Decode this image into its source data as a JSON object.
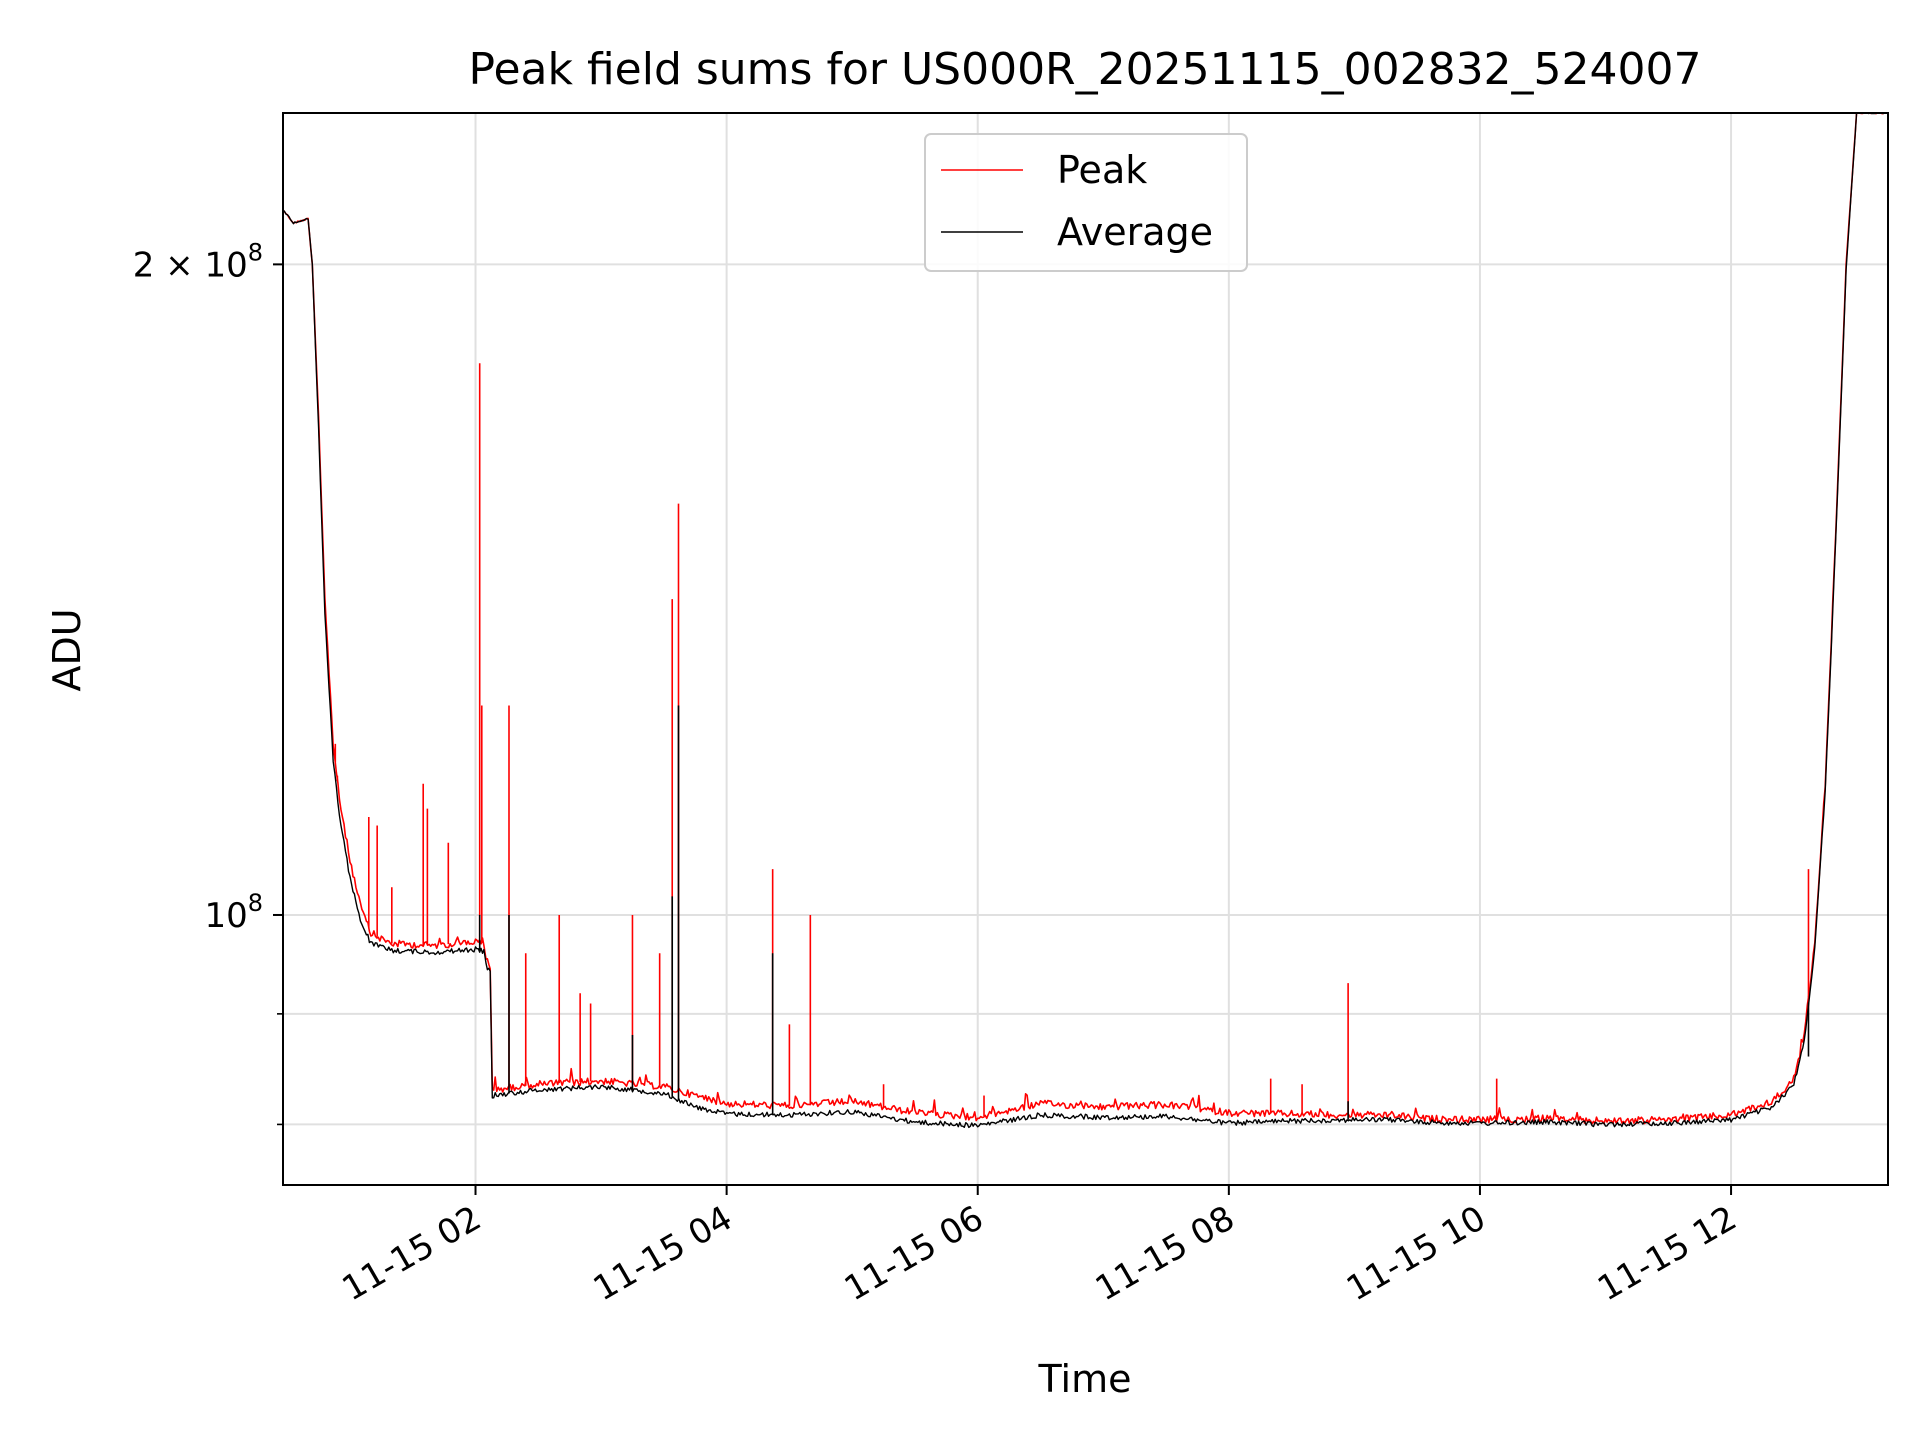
{
  "chart_data": {
    "type": "line",
    "title": "Peak field sums for US000R_20251115_002832_524007",
    "xlabel": "Time",
    "ylabel": "ADU",
    "x_scale": "time",
    "y_scale": "log",
    "xlim": [
      "2025-11-15 00:28",
      "2025-11-15 13:15"
    ],
    "ylim": [
      75000000,
      235000000
    ],
    "x_ticks": [
      {
        "value": "2025-11-15 02:00",
        "label": "11-15 02"
      },
      {
        "value": "2025-11-15 04:00",
        "label": "11-15 04"
      },
      {
        "value": "2025-11-15 06:00",
        "label": "11-15 06"
      },
      {
        "value": "2025-11-15 08:00",
        "label": "11-15 08"
      },
      {
        "value": "2025-11-15 10:00",
        "label": "11-15 10"
      },
      {
        "value": "2025-11-15 12:00",
        "label": "11-15 12"
      }
    ],
    "y_major_ticks": [
      {
        "value": 100000000,
        "label_base": "10",
        "label_exp": "8",
        "label_prefix": ""
      },
      {
        "value": 200000000,
        "label_base": "10",
        "label_exp": "8",
        "label_prefix": "2 × "
      }
    ],
    "y_minor_ticks": [
      80000000,
      90000000
    ],
    "grid": true,
    "legend_position": "top-center",
    "series": [
      {
        "name": "Peak",
        "color": "#ff0000",
        "points": [
          [
            "2025-11-15 00:28",
            212000000
          ],
          [
            "2025-11-15 00:33",
            209000000
          ],
          [
            "2025-11-15 00:40",
            210000000
          ],
          [
            "2025-11-15 00:42",
            200000000
          ],
          [
            "2025-11-15 00:45",
            170000000
          ],
          [
            "2025-11-15 00:48",
            140000000
          ],
          [
            "2025-11-15 00:52",
            120000000
          ],
          [
            "2025-11-15 00:55",
            113000000
          ],
          [
            "2025-11-15 01:00",
            106000000
          ],
          [
            "2025-11-15 01:05",
            101000000
          ],
          [
            "2025-11-15 01:10",
            98000000
          ],
          [
            "2025-11-15 01:20",
            97000000
          ],
          [
            "2025-11-15 01:40",
            96800000
          ],
          [
            "2025-11-15 02:00",
            97200000
          ],
          [
            "2025-11-15 02:04",
            97000000
          ],
          [
            "2025-11-15 02:05",
            95500000
          ],
          [
            "2025-11-15 02:07",
            94500000
          ],
          [
            "2025-11-15 02:08",
            83000000
          ],
          [
            "2025-11-15 02:30",
            83500000
          ],
          [
            "2025-11-15 03:00",
            83800000
          ],
          [
            "2025-11-15 03:30",
            83300000
          ],
          [
            "2025-11-15 03:45",
            82500000
          ],
          [
            "2025-11-15 04:00",
            81800000
          ],
          [
            "2025-11-15 04:30",
            81600000
          ],
          [
            "2025-11-15 05:00",
            82000000
          ],
          [
            "2025-11-15 05:30",
            81000000
          ],
          [
            "2025-11-15 06:00",
            80600000
          ],
          [
            "2025-11-15 06:30",
            81800000
          ],
          [
            "2025-11-15 07:00",
            81500000
          ],
          [
            "2025-11-15 07:30",
            81700000
          ],
          [
            "2025-11-15 08:00",
            81000000
          ],
          [
            "2025-11-15 08:30",
            80900000
          ],
          [
            "2025-11-15 09:00",
            80800000
          ],
          [
            "2025-11-15 09:20",
            80800000
          ],
          [
            "2025-11-15 09:30",
            80500000
          ],
          [
            "2025-11-15 10:00",
            80400000
          ],
          [
            "2025-11-15 10:30",
            80500000
          ],
          [
            "2025-11-15 11:00",
            80300000
          ],
          [
            "2025-11-15 11:30",
            80400000
          ],
          [
            "2025-11-15 12:00",
            80800000
          ],
          [
            "2025-11-15 12:20",
            82000000
          ],
          [
            "2025-11-15 12:30",
            84000000
          ],
          [
            "2025-11-15 12:35",
            88000000
          ],
          [
            "2025-11-15 12:40",
            97000000
          ],
          [
            "2025-11-15 12:45",
            115000000
          ],
          [
            "2025-11-15 12:50",
            150000000
          ],
          [
            "2025-11-15 12:55",
            200000000
          ],
          [
            "2025-11-15 13:00",
            235000000
          ],
          [
            "2025-11-15 13:15",
            235000000
          ]
        ],
        "spikes": [
          [
            "2025-11-15 00:53",
            120000000
          ],
          [
            "2025-11-15 00:54",
            116000000
          ],
          [
            "2025-11-15 01:09",
            111000000
          ],
          [
            "2025-11-15 01:13",
            110000000
          ],
          [
            "2025-11-15 01:20",
            103000000
          ],
          [
            "2025-11-15 01:35",
            115000000
          ],
          [
            "2025-11-15 01:37",
            112000000
          ],
          [
            "2025-11-15 01:47",
            108000000
          ],
          [
            "2025-11-15 02:02",
            180000000
          ],
          [
            "2025-11-15 02:03",
            125000000
          ],
          [
            "2025-11-15 02:16",
            125000000
          ],
          [
            "2025-11-15 02:24",
            96000000
          ],
          [
            "2025-11-15 02:40",
            100000000
          ],
          [
            "2025-11-15 02:50",
            92000000
          ],
          [
            "2025-11-15 02:55",
            91000000
          ],
          [
            "2025-11-15 03:15",
            100000000
          ],
          [
            "2025-11-15 03:28",
            96000000
          ],
          [
            "2025-11-15 03:34",
            140000000
          ],
          [
            "2025-11-15 03:37",
            155000000
          ],
          [
            "2025-11-15 04:22",
            105000000
          ],
          [
            "2025-11-15 04:30",
            89000000
          ],
          [
            "2025-11-15 04:40",
            100000000
          ],
          [
            "2025-11-15 05:15",
            83500000
          ],
          [
            "2025-11-15 06:03",
            82500000
          ],
          [
            "2025-11-15 08:20",
            84000000
          ],
          [
            "2025-11-15 08:35",
            83500000
          ],
          [
            "2025-11-15 08:57",
            93000000
          ],
          [
            "2025-11-15 10:08",
            84000000
          ],
          [
            "2025-11-15 12:37",
            105000000
          ]
        ]
      },
      {
        "name": "Average",
        "color": "#000000",
        "points": [
          [
            "2025-11-15 00:28",
            212000000
          ],
          [
            "2025-11-15 00:33",
            209000000
          ],
          [
            "2025-11-15 00:40",
            210000000
          ],
          [
            "2025-11-15 00:42",
            200000000
          ],
          [
            "2025-11-15 00:45",
            168000000
          ],
          [
            "2025-11-15 00:48",
            138000000
          ],
          [
            "2025-11-15 00:52",
            118000000
          ],
          [
            "2025-11-15 00:55",
            111000000
          ],
          [
            "2025-11-15 01:00",
            104000000
          ],
          [
            "2025-11-15 01:05",
            99500000
          ],
          [
            "2025-11-15 01:10",
            97000000
          ],
          [
            "2025-11-15 01:20",
            96300000
          ],
          [
            "2025-11-15 01:40",
            96100000
          ],
          [
            "2025-11-15 02:00",
            96400000
          ],
          [
            "2025-11-15 02:04",
            96200000
          ],
          [
            "2025-11-15 02:05",
            94800000
          ],
          [
            "2025-11-15 02:07",
            94000000
          ],
          [
            "2025-11-15 02:08",
            82500000
          ],
          [
            "2025-11-15 02:30",
            83000000
          ],
          [
            "2025-11-15 03:00",
            83300000
          ],
          [
            "2025-11-15 03:30",
            82700000
          ],
          [
            "2025-11-15 03:45",
            81500000
          ],
          [
            "2025-11-15 04:00",
            80900000
          ],
          [
            "2025-11-15 04:30",
            80800000
          ],
          [
            "2025-11-15 05:00",
            81100000
          ],
          [
            "2025-11-15 05:30",
            80200000
          ],
          [
            "2025-11-15 06:00",
            79900000
          ],
          [
            "2025-11-15 06:30",
            80800000
          ],
          [
            "2025-11-15 07:00",
            80600000
          ],
          [
            "2025-11-15 07:30",
            80700000
          ],
          [
            "2025-11-15 08:00",
            80100000
          ],
          [
            "2025-11-15 08:30",
            80300000
          ],
          [
            "2025-11-15 09:00",
            80400000
          ],
          [
            "2025-11-15 09:20",
            80400000
          ],
          [
            "2025-11-15 09:30",
            80200000
          ],
          [
            "2025-11-15 10:00",
            80100000
          ],
          [
            "2025-11-15 10:30",
            80200000
          ],
          [
            "2025-11-15 11:00",
            80000000
          ],
          [
            "2025-11-15 11:30",
            80100000
          ],
          [
            "2025-11-15 12:00",
            80400000
          ],
          [
            "2025-11-15 12:20",
            81500000
          ],
          [
            "2025-11-15 12:30",
            83500000
          ],
          [
            "2025-11-15 12:35",
            87500000
          ],
          [
            "2025-11-15 12:40",
            96500000
          ],
          [
            "2025-11-15 12:45",
            114000000
          ],
          [
            "2025-11-15 12:50",
            149000000
          ],
          [
            "2025-11-15 12:55",
            199000000
          ],
          [
            "2025-11-15 13:00",
            235000000
          ],
          [
            "2025-11-15 13:15",
            235000000
          ]
        ],
        "spikes": [
          [
            "2025-11-15 02:02",
            100000000
          ],
          [
            "2025-11-15 02:16",
            100000000
          ],
          [
            "2025-11-15 03:15",
            88000000
          ],
          [
            "2025-11-15 03:34",
            102000000
          ],
          [
            "2025-11-15 03:37",
            125000000
          ],
          [
            "2025-11-15 04:22",
            96000000
          ],
          [
            "2025-11-15 08:57",
            82000000
          ],
          [
            "2025-11-15 12:37",
            86000000
          ]
        ]
      }
    ]
  }
}
